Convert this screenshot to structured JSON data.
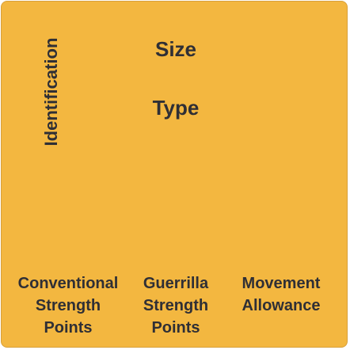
{
  "counter": {
    "background_color": "#f3b740",
    "text_color": "#2f2f35",
    "identification": "Identification",
    "size": "Size",
    "type": "Type",
    "conventional_strength_points": "Conventional\nStrength\nPoints",
    "guerrilla_strength_points": "Guerrilla\nStrength\nPoints",
    "movement_allowance": "Movement\nAllowance"
  }
}
